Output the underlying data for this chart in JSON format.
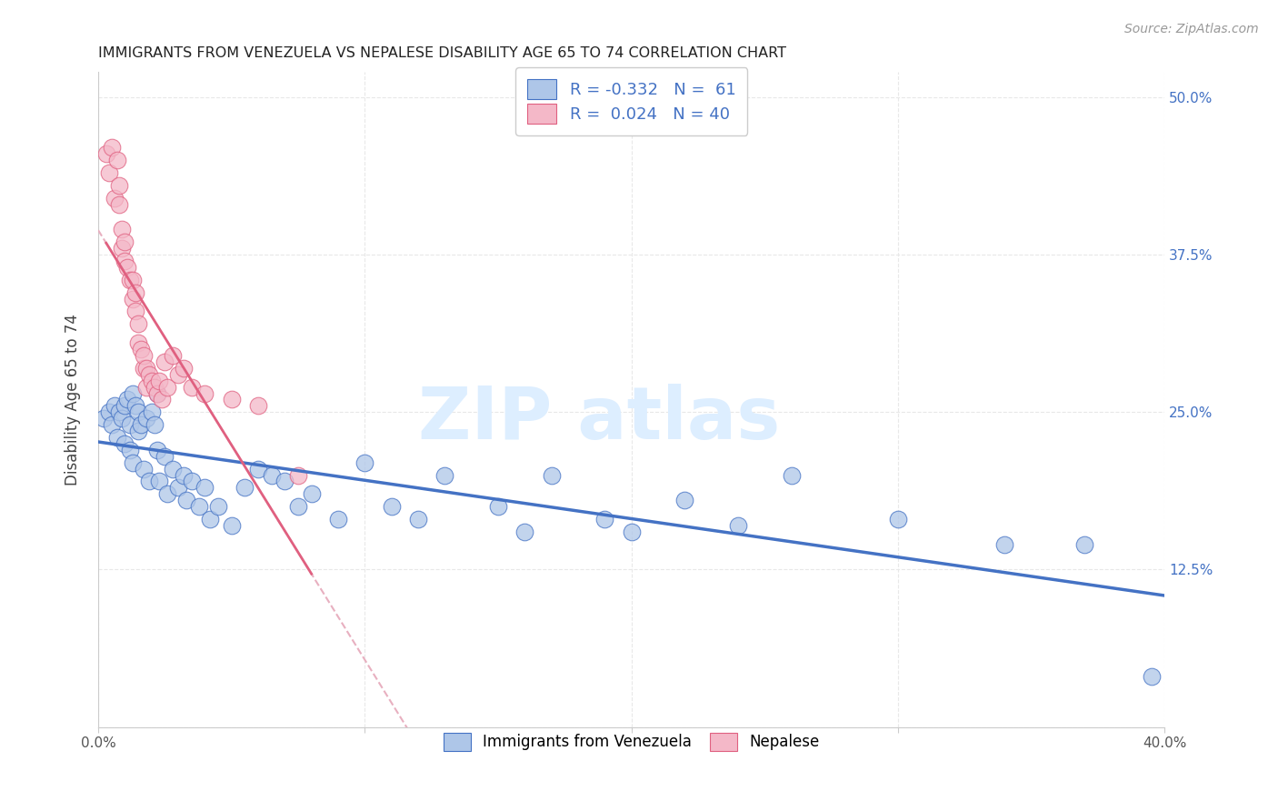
{
  "title": "IMMIGRANTS FROM VENEZUELA VS NEPALESE DISABILITY AGE 65 TO 74 CORRELATION CHART",
  "source": "Source: ZipAtlas.com",
  "ylabel": "Disability Age 65 to 74",
  "xlim": [
    0.0,
    0.4
  ],
  "ylim": [
    0.0,
    0.52
  ],
  "xtick_vals": [
    0.0,
    0.1,
    0.2,
    0.3,
    0.4
  ],
  "xtick_labels": [
    "0.0%",
    "",
    "",
    "",
    "40.0%"
  ],
  "ytick_vals": [
    0.0,
    0.125,
    0.25,
    0.375,
    0.5
  ],
  "ytick_labels_right": [
    "",
    "12.5%",
    "25.0%",
    "37.5%",
    "50.0%"
  ],
  "blue_R": -0.332,
  "blue_N": 61,
  "pink_R": 0.024,
  "pink_N": 40,
  "blue_scatter_x": [
    0.002,
    0.004,
    0.005,
    0.006,
    0.007,
    0.008,
    0.009,
    0.01,
    0.01,
    0.011,
    0.012,
    0.012,
    0.013,
    0.013,
    0.014,
    0.015,
    0.015,
    0.016,
    0.017,
    0.018,
    0.019,
    0.02,
    0.021,
    0.022,
    0.022,
    0.023,
    0.025,
    0.026,
    0.028,
    0.03,
    0.032,
    0.033,
    0.035,
    0.038,
    0.04,
    0.042,
    0.045,
    0.05,
    0.055,
    0.06,
    0.065,
    0.07,
    0.075,
    0.08,
    0.09,
    0.1,
    0.11,
    0.12,
    0.13,
    0.15,
    0.16,
    0.17,
    0.19,
    0.2,
    0.22,
    0.24,
    0.26,
    0.3,
    0.34,
    0.37,
    0.395
  ],
  "blue_scatter_y": [
    0.245,
    0.25,
    0.24,
    0.255,
    0.23,
    0.25,
    0.245,
    0.255,
    0.225,
    0.26,
    0.24,
    0.22,
    0.265,
    0.21,
    0.255,
    0.25,
    0.235,
    0.24,
    0.205,
    0.245,
    0.195,
    0.25,
    0.24,
    0.265,
    0.22,
    0.195,
    0.215,
    0.185,
    0.205,
    0.19,
    0.2,
    0.18,
    0.195,
    0.175,
    0.19,
    0.165,
    0.175,
    0.16,
    0.19,
    0.205,
    0.2,
    0.195,
    0.175,
    0.185,
    0.165,
    0.21,
    0.175,
    0.165,
    0.2,
    0.175,
    0.155,
    0.2,
    0.165,
    0.155,
    0.18,
    0.16,
    0.2,
    0.165,
    0.145,
    0.145,
    0.04
  ],
  "pink_scatter_x": [
    0.003,
    0.004,
    0.005,
    0.006,
    0.007,
    0.008,
    0.008,
    0.009,
    0.009,
    0.01,
    0.01,
    0.011,
    0.012,
    0.013,
    0.013,
    0.014,
    0.014,
    0.015,
    0.015,
    0.016,
    0.017,
    0.017,
    0.018,
    0.018,
    0.019,
    0.02,
    0.021,
    0.022,
    0.023,
    0.024,
    0.025,
    0.026,
    0.028,
    0.03,
    0.032,
    0.035,
    0.04,
    0.05,
    0.06,
    0.075
  ],
  "pink_scatter_y": [
    0.455,
    0.44,
    0.46,
    0.42,
    0.45,
    0.415,
    0.43,
    0.38,
    0.395,
    0.385,
    0.37,
    0.365,
    0.355,
    0.355,
    0.34,
    0.33,
    0.345,
    0.32,
    0.305,
    0.3,
    0.285,
    0.295,
    0.285,
    0.27,
    0.28,
    0.275,
    0.27,
    0.265,
    0.275,
    0.26,
    0.29,
    0.27,
    0.295,
    0.28,
    0.285,
    0.27,
    0.265,
    0.26,
    0.255,
    0.2
  ],
  "blue_color": "#aec6e8",
  "pink_color": "#f4b8c8",
  "blue_line_color": "#4472c4",
  "pink_line_color": "#e06080",
  "pink_line_dashed_color": "#e8b0c0",
  "watermark_text": "ZIP atlas",
  "watermark_color": "#ddeeff",
  "legend_label_blue": "Immigrants from Venezuela",
  "legend_label_pink": "Nepalese",
  "grid_color": "#e8e8e8"
}
